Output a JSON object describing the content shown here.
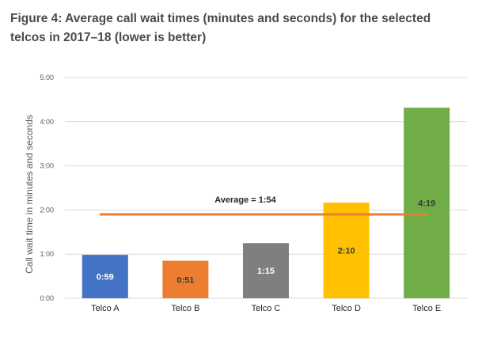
{
  "title": "Figure 4: Average call wait times (minutes and seconds) for the selected telcos in 2017–18 (lower is better)",
  "chart_data": {
    "type": "bar",
    "categories": [
      "Telco A",
      "Telco B",
      "Telco C",
      "Telco D",
      "Telco E"
    ],
    "values": [
      0.9833,
      0.85,
      1.25,
      2.1667,
      4.3167
    ],
    "data_labels": [
      "0:59",
      "0:51",
      "1:15",
      "2:10",
      "4:19"
    ],
    "ylabel": "Call wait time in minutes and seconds",
    "ylim": [
      0,
      5
    ],
    "yticks": [
      0,
      1,
      2,
      3,
      4,
      5
    ],
    "ytick_labels": [
      "0:00",
      "1:00",
      "2:00",
      "3:00",
      "4:00",
      "5:00"
    ],
    "grid": true,
    "average": {
      "value": 1.9,
      "label": "Average = 1:54",
      "color": "#ED7D31"
    },
    "bar_colors": [
      "#4472C4",
      "#ED7D31",
      "#7F7F7F",
      "#FFC000",
      "#70AD47"
    ],
    "label_colors": [
      "#ffffff",
      "#3a3a3a",
      "#ffffff",
      "#3a3a3a",
      "#3a3a3a"
    ]
  }
}
